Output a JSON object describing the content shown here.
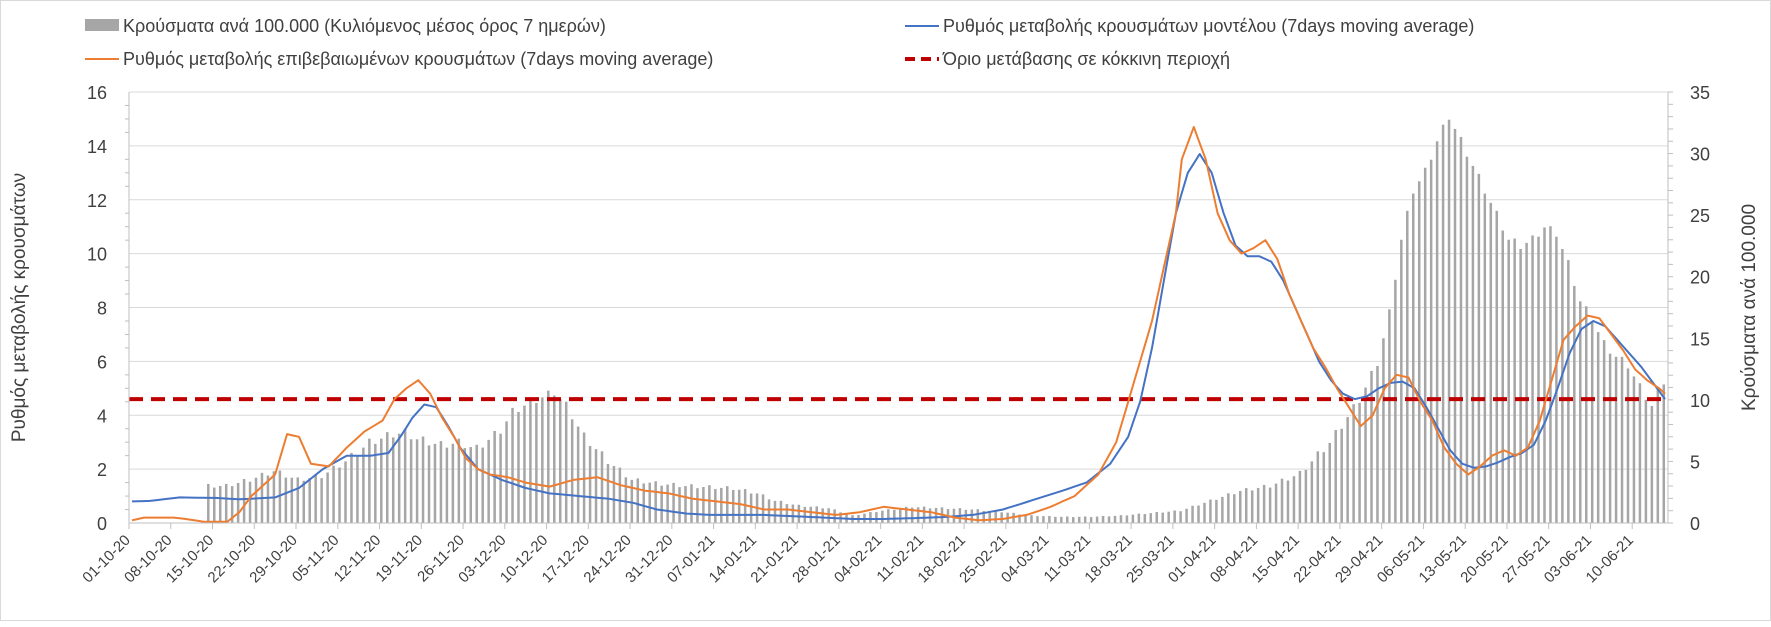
{
  "chart_data": {
    "type": "bar+line",
    "title": "",
    "legend": {
      "position": "top",
      "entries": [
        {
          "key": "bars",
          "label": "Κρούσματα ανά 100.000 (Κυλιόμενος μέσος όρος 7 ημερών)",
          "color": "#a6a6a6"
        },
        {
          "key": "model",
          "label": "Ρυθμός μεταβολής κρουσμάτων μοντέλου (7days moving average)",
          "color": "#4472c4"
        },
        {
          "key": "confirmed",
          "label": "Ρυθμός μεταβολής επιβεβαιωμένων κρουσμάτων (7days moving average)",
          "color": "#ed7d31"
        },
        {
          "key": "threshold",
          "label": "Όριο μετάβασης σε κόκκινη περιοχή",
          "color": "#c00000"
        }
      ]
    },
    "left_axis": {
      "label": "Ρυθμός μεταβολής κρουσμάτων",
      "min": 0,
      "max": 16,
      "ticks": [
        "0",
        "2",
        "4",
        "6",
        "8",
        "10",
        "12",
        "14",
        "16"
      ]
    },
    "right_axis": {
      "label": "Κρούσματα ανά 100.000",
      "min": 0,
      "max": 35,
      "ticks": [
        "0",
        "5",
        "10",
        "15",
        "20",
        "25",
        "30",
        "35"
      ]
    },
    "x_axis": {
      "tick_labels": [
        "01-10-20",
        "08-10-20",
        "15-10-20",
        "22-10-20",
        "29-10-20",
        "05-11-20",
        "12-11-20",
        "19-11-20",
        "26-11-20",
        "03-12-20",
        "10-12-20",
        "17-12-20",
        "24-12-20",
        "31-12-20",
        "07-01-21",
        "14-01-21",
        "21-01-21",
        "28-01-21",
        "04-02-21",
        "11-02-21",
        "18-02-21",
        "25-02-21",
        "04-03-21",
        "11-03-21",
        "18-03-21",
        "25-03-21",
        "01-04-21",
        "08-04-21",
        "15-04-21",
        "22-04-21",
        "29-04-21",
        "06-05-21",
        "13-05-21",
        "20-05-21",
        "27-05-21",
        "03-06-21",
        "10-06-21"
      ]
    },
    "days": 258,
    "threshold_value": 4.6,
    "bars_keypoints": [
      [
        0,
        0
      ],
      [
        8,
        0
      ],
      [
        12,
        0
      ],
      [
        13,
        3
      ],
      [
        16,
        3
      ],
      [
        20,
        3.5
      ],
      [
        24,
        4.2
      ],
      [
        28,
        3.5
      ],
      [
        32,
        3.8
      ],
      [
        36,
        5
      ],
      [
        40,
        6.5
      ],
      [
        44,
        7.2
      ],
      [
        46,
        7.3
      ],
      [
        48,
        6.8
      ],
      [
        52,
        6.3
      ],
      [
        55,
        6.5
      ],
      [
        58,
        6.0
      ],
      [
        62,
        7.5
      ],
      [
        64,
        9
      ],
      [
        67,
        9.8
      ],
      [
        69,
        10.2
      ],
      [
        71,
        10.6
      ],
      [
        73,
        9.5
      ],
      [
        76,
        7
      ],
      [
        80,
        5
      ],
      [
        84,
        3.5
      ],
      [
        88,
        3.2
      ],
      [
        93,
        3.0
      ],
      [
        97,
        2.9
      ],
      [
        101,
        2.8
      ],
      [
        105,
        2.4
      ],
      [
        108,
        1.8
      ],
      [
        112,
        1.4
      ],
      [
        117,
        1.2
      ],
      [
        121,
        0.6
      ],
      [
        126,
        1.0
      ],
      [
        131,
        1.3
      ],
      [
        136,
        1.2
      ],
      [
        141,
        1.1
      ],
      [
        146,
        0.9
      ],
      [
        151,
        0.6
      ],
      [
        156,
        0.5
      ],
      [
        161,
        0.5
      ],
      [
        166,
        0.6
      ],
      [
        171,
        0.8
      ],
      [
        176,
        1.0
      ],
      [
        181,
        1.8
      ],
      [
        186,
        2.6
      ],
      [
        191,
        3.0
      ],
      [
        196,
        4.0
      ],
      [
        201,
        6.5
      ],
      [
        206,
        10
      ],
      [
        209,
        13
      ],
      [
        211,
        17
      ],
      [
        213,
        23
      ],
      [
        215,
        27
      ],
      [
        217,
        28.5
      ],
      [
        219,
        31
      ],
      [
        221,
        33
      ],
      [
        223,
        31
      ],
      [
        225,
        29
      ],
      [
        227,
        27
      ],
      [
        229,
        25
      ],
      [
        231,
        23
      ],
      [
        233,
        22.5
      ],
      [
        235,
        23
      ],
      [
        237,
        24
      ],
      [
        239,
        23.5
      ],
      [
        241,
        21
      ],
      [
        243,
        18
      ],
      [
        245,
        16.5
      ],
      [
        247,
        14.5
      ],
      [
        249,
        13.5
      ],
      [
        251,
        12.8
      ],
      [
        253,
        11
      ],
      [
        255,
        9.5
      ],
      [
        257,
        11.5
      ]
    ],
    "model_keypoints": [
      [
        0,
        0.8
      ],
      [
        3,
        0.82
      ],
      [
        8,
        0.95
      ],
      [
        14,
        0.93
      ],
      [
        18,
        0.88
      ],
      [
        24,
        0.95
      ],
      [
        28,
        1.3
      ],
      [
        32,
        2.0
      ],
      [
        36,
        2.5
      ],
      [
        40,
        2.5
      ],
      [
        43,
        2.6
      ],
      [
        45,
        3.2
      ],
      [
        47,
        3.9
      ],
      [
        49,
        4.4
      ],
      [
        51,
        4.3
      ],
      [
        53,
        3.6
      ],
      [
        55,
        2.8
      ],
      [
        58,
        2.0
      ],
      [
        62,
        1.6
      ],
      [
        66,
        1.3
      ],
      [
        70,
        1.1
      ],
      [
        75,
        1.0
      ],
      [
        80,
        0.9
      ],
      [
        84,
        0.75
      ],
      [
        88,
        0.5
      ],
      [
        93,
        0.35
      ],
      [
        97,
        0.3
      ],
      [
        101,
        0.3
      ],
      [
        106,
        0.3
      ],
      [
        111,
        0.25
      ],
      [
        116,
        0.2
      ],
      [
        121,
        0.15
      ],
      [
        126,
        0.15
      ],
      [
        131,
        0.18
      ],
      [
        136,
        0.22
      ],
      [
        141,
        0.3
      ],
      [
        146,
        0.5
      ],
      [
        151,
        0.85
      ],
      [
        156,
        1.2
      ],
      [
        160,
        1.5
      ],
      [
        164,
        2.2
      ],
      [
        167,
        3.2
      ],
      [
        169,
        4.5
      ],
      [
        171,
        6.5
      ],
      [
        173,
        9.0
      ],
      [
        175,
        11.5
      ],
      [
        177,
        13.0
      ],
      [
        179,
        13.7
      ],
      [
        181,
        13.0
      ],
      [
        183,
        11.5
      ],
      [
        185,
        10.3
      ],
      [
        187,
        9.9
      ],
      [
        189,
        9.9
      ],
      [
        191,
        9.7
      ],
      [
        193,
        9.0
      ],
      [
        195,
        8.0
      ],
      [
        197,
        7.0
      ],
      [
        199,
        6.0
      ],
      [
        201,
        5.3
      ],
      [
        203,
        4.8
      ],
      [
        205,
        4.6
      ],
      [
        207,
        4.7
      ],
      [
        209,
        5.0
      ],
      [
        211,
        5.2
      ],
      [
        213,
        5.25
      ],
      [
        215,
        5.0
      ],
      [
        217,
        4.3
      ],
      [
        219,
        3.5
      ],
      [
        221,
        2.7
      ],
      [
        223,
        2.2
      ],
      [
        225,
        2.05
      ],
      [
        227,
        2.1
      ],
      [
        229,
        2.25
      ],
      [
        231,
        2.45
      ],
      [
        233,
        2.6
      ],
      [
        235,
        2.9
      ],
      [
        237,
        3.8
      ],
      [
        239,
        5.0
      ],
      [
        241,
        6.3
      ],
      [
        243,
        7.2
      ],
      [
        245,
        7.5
      ],
      [
        247,
        7.3
      ],
      [
        249,
        6.8
      ],
      [
        251,
        6.3
      ],
      [
        253,
        5.8
      ],
      [
        255,
        5.2
      ],
      [
        257,
        4.6
      ]
    ],
    "confirmed_keypoints": [
      [
        0,
        0.1
      ],
      [
        2,
        0.2
      ],
      [
        7,
        0.2
      ],
      [
        9,
        0.15
      ],
      [
        12,
        0.05
      ],
      [
        16,
        0.05
      ],
      [
        18,
        0.4
      ],
      [
        20,
        1.0
      ],
      [
        24,
        1.8
      ],
      [
        26,
        3.3
      ],
      [
        28,
        3.2
      ],
      [
        30,
        2.2
      ],
      [
        33,
        2.1
      ],
      [
        36,
        2.8
      ],
      [
        39,
        3.4
      ],
      [
        42,
        3.8
      ],
      [
        44,
        4.6
      ],
      [
        46,
        5.0
      ],
      [
        48,
        5.3
      ],
      [
        50,
        4.8
      ],
      [
        52,
        3.9
      ],
      [
        54,
        3.2
      ],
      [
        56,
        2.4
      ],
      [
        58,
        2.0
      ],
      [
        60,
        1.8
      ],
      [
        63,
        1.7
      ],
      [
        66,
        1.5
      ],
      [
        70,
        1.35
      ],
      [
        74,
        1.6
      ],
      [
        78,
        1.7
      ],
      [
        82,
        1.4
      ],
      [
        86,
        1.2
      ],
      [
        90,
        1.1
      ],
      [
        94,
        0.9
      ],
      [
        98,
        0.8
      ],
      [
        102,
        0.7
      ],
      [
        106,
        0.5
      ],
      [
        110,
        0.5
      ],
      [
        114,
        0.4
      ],
      [
        118,
        0.3
      ],
      [
        122,
        0.4
      ],
      [
        126,
        0.6
      ],
      [
        130,
        0.5
      ],
      [
        134,
        0.4
      ],
      [
        138,
        0.2
      ],
      [
        142,
        0.1
      ],
      [
        146,
        0.15
      ],
      [
        150,
        0.3
      ],
      [
        154,
        0.6
      ],
      [
        158,
        1.0
      ],
      [
        162,
        1.8
      ],
      [
        165,
        3.0
      ],
      [
        167,
        4.5
      ],
      [
        169,
        6.0
      ],
      [
        171,
        7.5
      ],
      [
        173,
        9.5
      ],
      [
        175,
        11.5
      ],
      [
        176,
        13.5
      ],
      [
        178,
        14.7
      ],
      [
        180,
        13.5
      ],
      [
        182,
        11.5
      ],
      [
        184,
        10.5
      ],
      [
        186,
        10.0
      ],
      [
        188,
        10.2
      ],
      [
        190,
        10.5
      ],
      [
        192,
        9.8
      ],
      [
        194,
        8.5
      ],
      [
        196,
        7.5
      ],
      [
        198,
        6.5
      ],
      [
        200,
        5.8
      ],
      [
        202,
        5.0
      ],
      [
        204,
        4.3
      ],
      [
        206,
        3.6
      ],
      [
        208,
        4.0
      ],
      [
        210,
        5.0
      ],
      [
        212,
        5.5
      ],
      [
        214,
        5.4
      ],
      [
        216,
        4.5
      ],
      [
        218,
        3.8
      ],
      [
        220,
        2.8
      ],
      [
        222,
        2.2
      ],
      [
        224,
        1.8
      ],
      [
        226,
        2.1
      ],
      [
        228,
        2.5
      ],
      [
        230,
        2.7
      ],
      [
        232,
        2.5
      ],
      [
        234,
        2.8
      ],
      [
        236,
        3.8
      ],
      [
        238,
        5.3
      ],
      [
        240,
        6.8
      ],
      [
        242,
        7.3
      ],
      [
        244,
        7.7
      ],
      [
        246,
        7.6
      ],
      [
        248,
        7.0
      ],
      [
        250,
        6.4
      ],
      [
        252,
        5.7
      ],
      [
        254,
        5.3
      ],
      [
        256,
        5.0
      ],
      [
        257,
        4.8
      ]
    ]
  }
}
